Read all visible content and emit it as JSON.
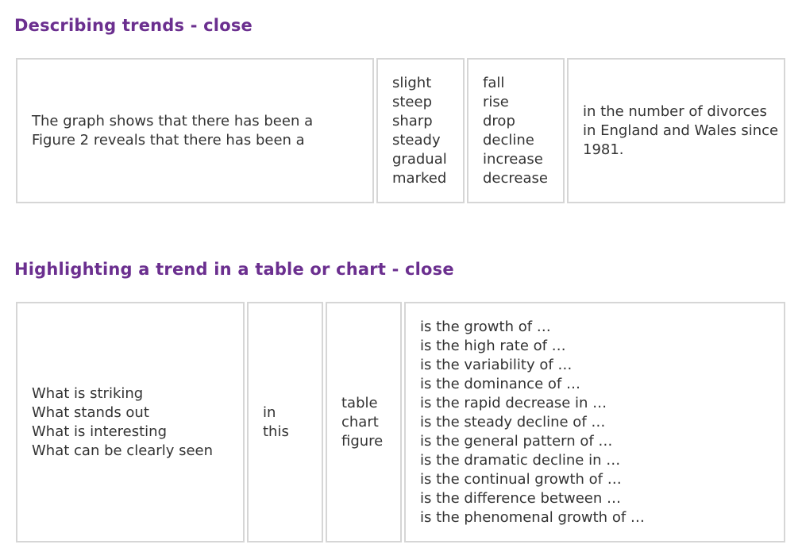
{
  "section1": {
    "title": "Describing trends - close",
    "col1": [
      "The graph shows that there has been a",
      "Figure 2  reveals that there has been a"
    ],
    "col2": [
      "slight",
      "steep",
      "sharp",
      "steady",
      "gradual",
      "marked"
    ],
    "col3": [
      "fall",
      "rise",
      "drop",
      "decline",
      "increase",
      "decrease"
    ],
    "col4": "in the number of divorces in England and Wales since 1981."
  },
  "section2": {
    "title": "Highlighting a trend in a table or chart - close",
    "col1": [
      "What is striking",
      "What stands out",
      "What is interesting",
      "What can be clearly seen"
    ],
    "col2": [
      "in",
      "this"
    ],
    "col3": [
      "table",
      "chart",
      "figure"
    ],
    "col4": [
      "is the growth of …",
      "is the high rate of …",
      "is the variability of …",
      "is the dominance of …",
      "is the rapid decrease in …",
      "is the steady decline of …",
      "is the general pattern of …",
      "is the dramatic decline in …",
      "is the continual growth of …",
      "is the difference between …",
      "is the phenomenal growth of …"
    ]
  },
  "colors": {
    "heading": "#6b2f8f",
    "border": "#d6d6d6",
    "text": "#333333"
  }
}
